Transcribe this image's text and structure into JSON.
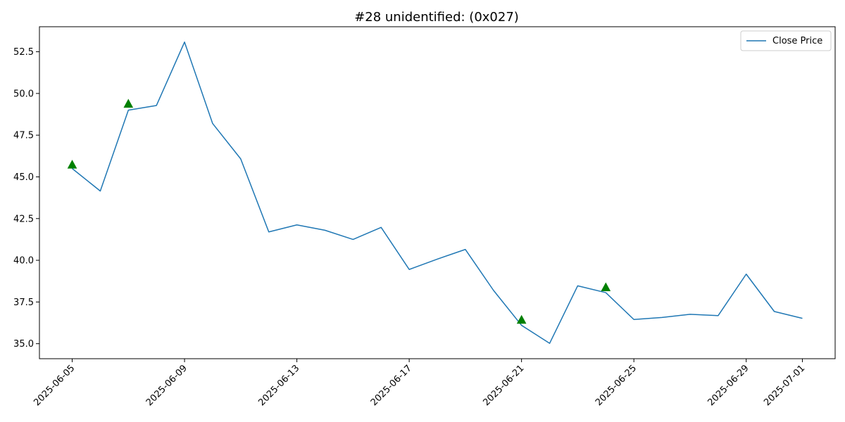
{
  "chart_data": {
    "type": "line",
    "title": "#28 unidentified:  (0x027)",
    "xlabel": "",
    "ylabel": "",
    "x": [
      "2025-06-05",
      "2025-06-06",
      "2025-06-07",
      "2025-06-08",
      "2025-06-09",
      "2025-06-10",
      "2025-06-11",
      "2025-06-12",
      "2025-06-13",
      "2025-06-14",
      "2025-06-15",
      "2025-06-16",
      "2025-06-17",
      "2025-06-18",
      "2025-06-19",
      "2025-06-20",
      "2025-06-21",
      "2025-06-22",
      "2025-06-23",
      "2025-06-24",
      "2025-06-25",
      "2025-06-26",
      "2025-06-27",
      "2025-06-28",
      "2025-06-29",
      "2025-06-30",
      "2025-07-01"
    ],
    "series": [
      {
        "name": "Close Price",
        "color": "#1f77b4",
        "values": [
          45.5,
          44.15,
          49.0,
          49.28,
          53.08,
          48.2,
          46.08,
          41.7,
          42.12,
          41.8,
          41.25,
          41.97,
          39.45,
          40.07,
          40.65,
          38.2,
          36.1,
          35.02,
          38.47,
          38.06,
          36.45,
          36.57,
          36.76,
          36.68,
          39.17,
          36.93,
          36.52
        ]
      }
    ],
    "markers": {
      "color": "#008000",
      "shape": "triangle-up",
      "points": [
        {
          "x": "2025-06-05",
          "y": 45.75
        },
        {
          "x": "2025-06-07",
          "y": 49.4
        },
        {
          "x": "2025-06-21",
          "y": 36.45
        },
        {
          "x": "2025-06-24",
          "y": 38.4
        }
      ]
    },
    "x_ticks": [
      "2025-06-05",
      "2025-06-09",
      "2025-06-13",
      "2025-06-17",
      "2025-06-21",
      "2025-06-25",
      "2025-06-29",
      "2025-07-01"
    ],
    "y_ticks": [
      "35.0",
      "37.5",
      "40.0",
      "42.5",
      "45.0",
      "47.5",
      "50.0",
      "52.5"
    ],
    "xlim": [
      "2025-06-03 20:00",
      "2025-07-02 04:00"
    ],
    "ylim": [
      34.1,
      54.0
    ],
    "grid": false,
    "legend_position": "top-right"
  }
}
